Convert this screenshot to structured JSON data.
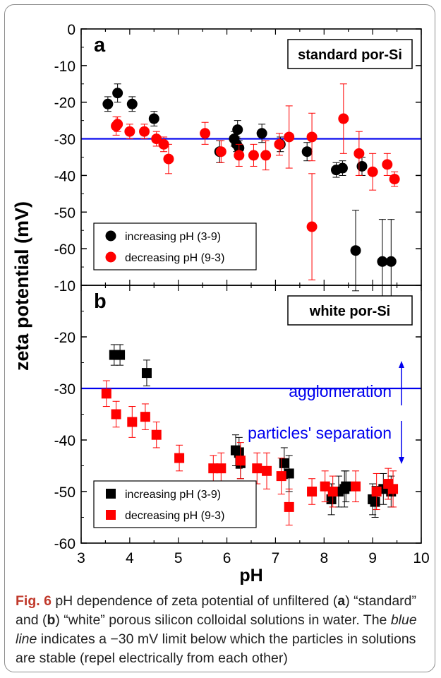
{
  "chart_data": [
    {
      "panel": "a",
      "type": "scatter",
      "title": "standard por-Si",
      "xlabel": "pH",
      "ylabel": "zeta potential (mV)",
      "xlim": [
        3,
        10
      ],
      "ylim": [
        0,
        -70
      ],
      "yticks": [
        0,
        -10,
        -20,
        -30,
        -40,
        -50,
        -60
      ],
      "reference_line": -30,
      "marker": "circle",
      "legend_position": "bottom-left",
      "series": [
        {
          "name": "increasing pH (3-9)",
          "color": "#000000",
          "points": [
            {
              "x": 3.55,
              "y": -20.5,
              "err": 2.0
            },
            {
              "x": 3.75,
              "y": -17.5,
              "err": 2.5
            },
            {
              "x": 4.05,
              "y": -20.5,
              "err": 2.0
            },
            {
              "x": 4.5,
              "y": -24.5,
              "err": 2.0
            },
            {
              "x": 5.85,
              "y": -33.5,
              "err": 3.0
            },
            {
              "x": 6.15,
              "y": -30.0,
              "err": 2.0
            },
            {
              "x": 6.2,
              "y": -31.5,
              "err": 2.0
            },
            {
              "x": 6.22,
              "y": -27.5,
              "err": 2.5
            },
            {
              "x": 6.25,
              "y": -32.5,
              "err": 2.0
            },
            {
              "x": 6.72,
              "y": -28.5,
              "err": 2.5
            },
            {
              "x": 7.1,
              "y": -31.5,
              "err": 2.0
            },
            {
              "x": 7.65,
              "y": -33.5,
              "err": 2.5
            },
            {
              "x": 8.25,
              "y": -38.5,
              "err": 2.0
            },
            {
              "x": 8.38,
              "y": -38.0,
              "err": 2.0
            },
            {
              "x": 8.65,
              "y": -60.5,
              "err": 11.0
            },
            {
              "x": 8.78,
              "y": -37.5,
              "err": 2.5
            },
            {
              "x": 9.2,
              "y": -63.5,
              "err": 11.5
            },
            {
              "x": 9.38,
              "y": -63.5,
              "err": 11.5
            }
          ]
        },
        {
          "name": "decreasing pH (9-3)",
          "color": "#ff0000",
          "points": [
            {
              "x": 3.72,
              "y": -26.5,
              "err": 2.5
            },
            {
              "x": 3.75,
              "y": -26.0,
              "err": 2.0
            },
            {
              "x": 4.0,
              "y": -28.0,
              "err": 2.0
            },
            {
              "x": 4.3,
              "y": -28.0,
              "err": 2.0
            },
            {
              "x": 4.55,
              "y": -30.0,
              "err": 2.0
            },
            {
              "x": 4.7,
              "y": -31.5,
              "err": 2.0
            },
            {
              "x": 4.8,
              "y": -35.5,
              "err": 4.0
            },
            {
              "x": 5.55,
              "y": -28.5,
              "err": 3.0
            },
            {
              "x": 5.88,
              "y": -33.5,
              "err": 3.0
            },
            {
              "x": 6.25,
              "y": -34.5,
              "err": 3.0
            },
            {
              "x": 6.55,
              "y": -34.5,
              "err": 3.0
            },
            {
              "x": 6.8,
              "y": -34.5,
              "err": 4.0
            },
            {
              "x": 7.08,
              "y": -31.5,
              "err": 3.0
            },
            {
              "x": 7.28,
              "y": -29.5,
              "err": 8.5
            },
            {
              "x": 7.75,
              "y": -54.0,
              "err": 14.5
            },
            {
              "x": 7.75,
              "y": -29.5,
              "err": 6.5
            },
            {
              "x": 8.4,
              "y": -24.5,
              "err": 9.5
            },
            {
              "x": 8.72,
              "y": -34.0,
              "err": 6.0
            },
            {
              "x": 9.0,
              "y": -39.0,
              "err": 5.0
            },
            {
              "x": 9.3,
              "y": -37.0,
              "err": 3.0
            },
            {
              "x": 9.45,
              "y": -41.0,
              "err": 2.0
            }
          ]
        }
      ]
    },
    {
      "panel": "b",
      "type": "scatter",
      "title": "white por-Si",
      "xlabel": "pH",
      "ylabel": "zeta potential (mV)",
      "xlim": [
        3,
        10
      ],
      "ylim": [
        -10,
        -60
      ],
      "yticks": [
        -10,
        -20,
        -30,
        -40,
        -50,
        -60
      ],
      "xticks": [
        3,
        4,
        5,
        6,
        7,
        8,
        9,
        10
      ],
      "reference_line": -30,
      "marker": "square",
      "legend_position": "bottom-left",
      "annotations": [
        "agglomeration",
        "particles' separation"
      ],
      "series": [
        {
          "name": "increasing pH (3-9)",
          "color": "#000000",
          "points": [
            {
              "x": 3.68,
              "y": -23.5,
              "err": 2.0
            },
            {
              "x": 3.8,
              "y": -23.5,
              "err": 2.0
            },
            {
              "x": 4.35,
              "y": -27.0,
              "err": 2.5
            },
            {
              "x": 6.18,
              "y": -42.0,
              "err": 3.0
            },
            {
              "x": 6.25,
              "y": -42.5,
              "err": 3.0
            },
            {
              "x": 6.28,
              "y": -44.5,
              "err": 3.0
            },
            {
              "x": 7.18,
              "y": -44.5,
              "err": 3.0
            },
            {
              "x": 7.28,
              "y": -46.5,
              "err": 3.5
            },
            {
              "x": 8.15,
              "y": -51.5,
              "err": 3.0
            },
            {
              "x": 8.3,
              "y": -50.0,
              "err": 3.0
            },
            {
              "x": 8.42,
              "y": -49.5,
              "err": 3.5
            },
            {
              "x": 8.45,
              "y": -49.0,
              "err": 3.0
            },
            {
              "x": 9.0,
              "y": -51.5,
              "err": 3.0
            },
            {
              "x": 9.05,
              "y": -52.0,
              "err": 3.0
            },
            {
              "x": 9.22,
              "y": -49.5,
              "err": 3.0
            },
            {
              "x": 9.38,
              "y": -50.0,
              "err": 3.0
            }
          ]
        },
        {
          "name": "decreasing pH (9-3)",
          "color": "#ff0000",
          "points": [
            {
              "x": 3.52,
              "y": -31.0,
              "err": 2.5
            },
            {
              "x": 3.72,
              "y": -35.0,
              "err": 2.5
            },
            {
              "x": 4.05,
              "y": -36.5,
              "err": 3.0
            },
            {
              "x": 4.32,
              "y": -35.5,
              "err": 2.5
            },
            {
              "x": 4.55,
              "y": -39.0,
              "err": 2.5
            },
            {
              "x": 5.02,
              "y": -43.5,
              "err": 2.5
            },
            {
              "x": 5.72,
              "y": -45.5,
              "err": 2.5
            },
            {
              "x": 5.88,
              "y": -45.5,
              "err": 3.0
            },
            {
              "x": 6.28,
              "y": -44.0,
              "err": 3.5
            },
            {
              "x": 6.62,
              "y": -45.5,
              "err": 3.0
            },
            {
              "x": 6.82,
              "y": -46.0,
              "err": 3.5
            },
            {
              "x": 7.12,
              "y": -47.0,
              "err": 3.5
            },
            {
              "x": 7.28,
              "y": -53.0,
              "err": 3.5
            },
            {
              "x": 7.75,
              "y": -50.0,
              "err": 2.5
            },
            {
              "x": 8.02,
              "y": -49.0,
              "err": 3.0
            },
            {
              "x": 8.18,
              "y": -50.0,
              "err": 3.0
            },
            {
              "x": 8.65,
              "y": -49.0,
              "err": 3.0
            },
            {
              "x": 9.08,
              "y": -50.0,
              "err": 3.5
            },
            {
              "x": 9.32,
              "y": -48.5,
              "err": 3.0
            },
            {
              "x": 9.42,
              "y": -49.5,
              "err": 3.5
            }
          ]
        }
      ]
    }
  ],
  "caption": {
    "fig_label": "Fig. 6",
    "t1": " pH dependence of zeta potential of unfiltered (",
    "a": "a",
    "t2": ") “standard” and (",
    "b": "b",
    "t3": ") “white” porous silicon colloidal solutions in water. The ",
    "blue_italic": "blue line",
    "t4": " indicates a −30 mV limit below which the particles in solutions are stable (repel electrically from each other)"
  },
  "colors": {
    "reference_line": "#0000ee",
    "increasing": "#000000",
    "decreasing": "#ff0000"
  }
}
